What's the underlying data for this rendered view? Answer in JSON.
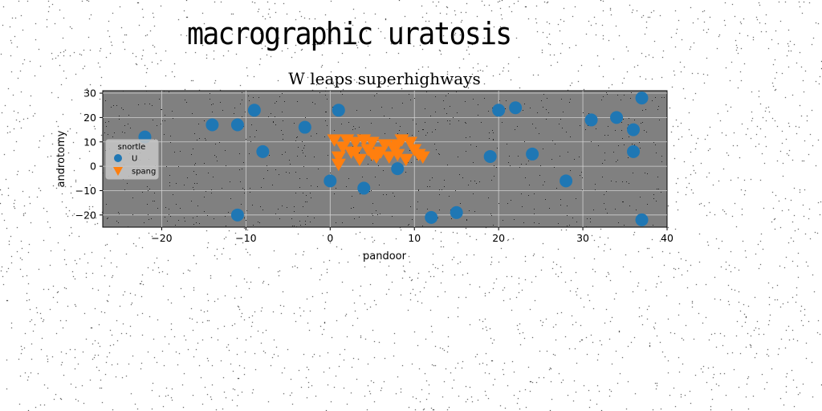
{
  "page": {
    "title": "macrographic uratosis"
  },
  "chart_data": {
    "type": "scatter",
    "title": "W leaps superhighways",
    "xlabel": "pandoor",
    "ylabel": "androtomy",
    "xlim": [
      -27,
      40
    ],
    "ylim": [
      -25,
      31
    ],
    "xticks": [
      -20,
      -10,
      0,
      10,
      20,
      30,
      40
    ],
    "xtick_labels": [
      "−20",
      "−10",
      "0",
      "10",
      "20",
      "30",
      "40"
    ],
    "yticks": [
      -20,
      -10,
      0,
      10,
      20,
      30
    ],
    "ytick_labels": [
      "−20",
      "−10",
      "0",
      "10",
      "20",
      "30"
    ],
    "grid": true,
    "background": "#808080",
    "legend": {
      "title": "snortle",
      "placement": "center-left"
    },
    "series": [
      {
        "name": "U",
        "marker": "circle",
        "color": "#1f77b4",
        "points": [
          [
            -22,
            12
          ],
          [
            -14,
            17
          ],
          [
            -11,
            17
          ],
          [
            -9,
            23
          ],
          [
            -8,
            6
          ],
          [
            -11,
            -20
          ],
          [
            -3,
            16
          ],
          [
            0,
            -6
          ],
          [
            1,
            23
          ],
          [
            4,
            -9
          ],
          [
            8,
            -1
          ],
          [
            12,
            -21
          ],
          [
            15,
            -19
          ],
          [
            19,
            4
          ],
          [
            20,
            23
          ],
          [
            22,
            24
          ],
          [
            24,
            5
          ],
          [
            28,
            -6
          ],
          [
            31,
            19
          ],
          [
            34,
            20
          ],
          [
            36,
            15
          ],
          [
            36,
            6
          ],
          [
            37,
            28
          ],
          [
            37,
            -22
          ]
        ]
      },
      {
        "name": "spang",
        "marker": "triangle-down",
        "color": "#ff7f0e",
        "points": [
          [
            0.5,
            11
          ],
          [
            1,
            4
          ],
          [
            1.5,
            8
          ],
          [
            2,
            11
          ],
          [
            2.5,
            6
          ],
          [
            3,
            10
          ],
          [
            3.5,
            3
          ],
          [
            4,
            11
          ],
          [
            4.5,
            7
          ],
          [
            5,
            10
          ],
          [
            5.5,
            4
          ],
          [
            6,
            6
          ],
          [
            6.5,
            9
          ],
          [
            7,
            4
          ],
          [
            7.5,
            8
          ],
          [
            8,
            5
          ],
          [
            8.5,
            11
          ],
          [
            9,
            3
          ],
          [
            9.5,
            10
          ],
          [
            10,
            7
          ],
          [
            10.5,
            5
          ],
          [
            11,
            4
          ],
          [
            3,
            6
          ],
          [
            5,
            5
          ],
          [
            8,
            9
          ],
          [
            1,
            1
          ]
        ]
      }
    ]
  }
}
